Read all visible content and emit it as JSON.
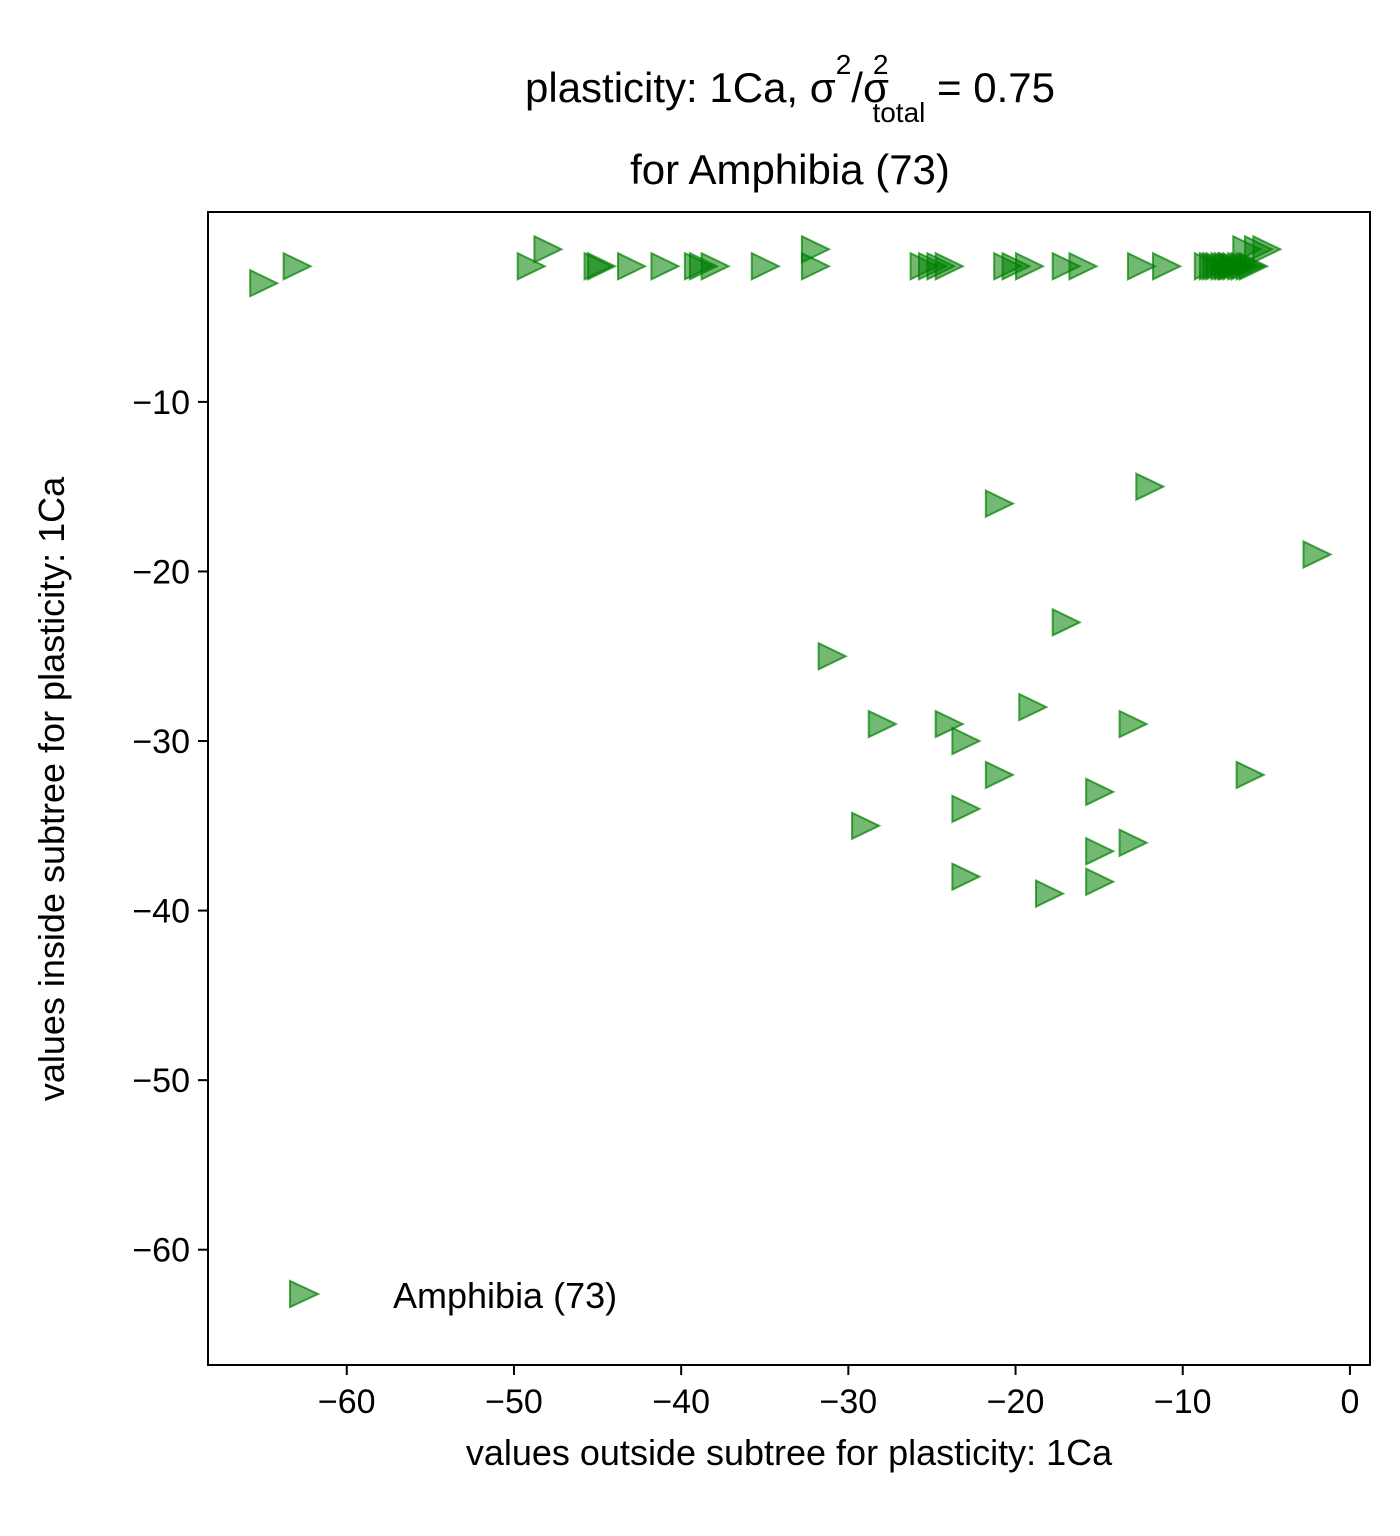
{
  "chart_data": {
    "type": "scatter",
    "title": {
      "line1_prefix": "plasticity: 1Ca, σ",
      "sup1": "2",
      "mid": "/σ",
      "sup2": "2",
      "sub": "total",
      "suffix": " =  0.75",
      "line2": "for Amphibia (73)"
    },
    "xlabel": "values outside subtree for plasticity: 1Ca",
    "ylabel": "values inside subtree for plasticity: 1Ca",
    "xlim": [
      -68.3,
      1.2
    ],
    "ylim": [
      -66.8,
      1.2
    ],
    "xticks": [
      -60,
      -50,
      -40,
      -30,
      -20,
      -10,
      0
    ],
    "yticks": [
      -10,
      -20,
      -30,
      -40,
      -50,
      -60
    ],
    "grid": false,
    "legend": {
      "placement": "lower-left",
      "label": "Amphibia (73)"
    },
    "marker": "triangle-right",
    "color": "#008000",
    "alpha": 0.55,
    "series": [
      {
        "name": "Amphibia (73)",
        "points": [
          [
            -65,
            -3.0
          ],
          [
            -63,
            -2.0
          ],
          [
            -49,
            -2.0
          ],
          [
            -48,
            -1.0
          ],
          [
            -45,
            -2.0
          ],
          [
            -44.8,
            -2.0
          ],
          [
            -43,
            -2.0
          ],
          [
            -41,
            -2.0
          ],
          [
            -39,
            -2.0
          ],
          [
            -38.7,
            -2.0
          ],
          [
            -38,
            -2.0
          ],
          [
            -35,
            -2.0
          ],
          [
            -32,
            -1.0
          ],
          [
            -32,
            -2.0
          ],
          [
            -25.5,
            -2.0
          ],
          [
            -25,
            -2.0
          ],
          [
            -24.5,
            -2.0
          ],
          [
            -24,
            -2.0
          ],
          [
            -20.5,
            -2.0
          ],
          [
            -20,
            -2.0
          ],
          [
            -19.2,
            -2.0
          ],
          [
            -17,
            -2.0
          ],
          [
            -16,
            -2.0
          ],
          [
            -12.5,
            -2.0
          ],
          [
            -11,
            -2.0
          ],
          [
            -8.5,
            -2.0
          ],
          [
            -8.2,
            -2.0
          ],
          [
            -8,
            -2.0
          ],
          [
            -7.8,
            -2.0
          ],
          [
            -7.5,
            -2.0
          ],
          [
            -7.3,
            -2.0
          ],
          [
            -7.1,
            -2.0
          ],
          [
            -7,
            -2.0
          ],
          [
            -6.8,
            -2.0
          ],
          [
            -6.5,
            -2.0
          ],
          [
            -6.3,
            -2.0
          ],
          [
            -6,
            -2.0
          ],
          [
            -5.8,
            -2.0
          ],
          [
            -6.2,
            -1.0
          ],
          [
            -5.5,
            -1.0
          ],
          [
            -5,
            -1.0
          ],
          [
            -21,
            -16
          ],
          [
            -12,
            -15
          ],
          [
            -2,
            -19
          ],
          [
            -17,
            -23
          ],
          [
            -31,
            -25
          ],
          [
            -19,
            -28
          ],
          [
            -28,
            -29
          ],
          [
            -24,
            -29
          ],
          [
            -13,
            -29
          ],
          [
            -23,
            -30
          ],
          [
            -21,
            -32
          ],
          [
            -6,
            -32
          ],
          [
            -15,
            -33
          ],
          [
            -23,
            -34
          ],
          [
            -29,
            -35
          ],
          [
            -13,
            -36
          ],
          [
            -15,
            -36.5
          ],
          [
            -23,
            -38
          ],
          [
            -15,
            -38.3
          ],
          [
            -18,
            -39
          ]
        ]
      }
    ]
  }
}
